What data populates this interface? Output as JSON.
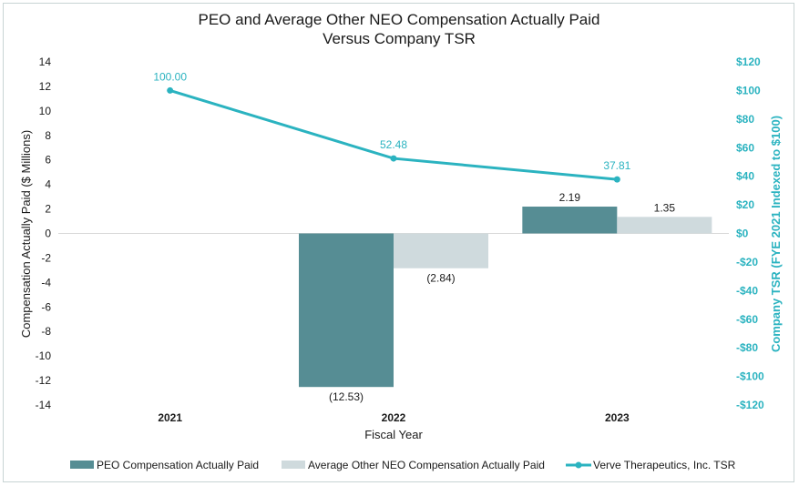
{
  "chart_data": {
    "type": "bar",
    "title_line1": "PEO and Average Other NEO Compensation Actually Paid",
    "title_line2": "Versus Company TSR",
    "categories": [
      "2021",
      "2022",
      "2023"
    ],
    "xlabel": "Fiscal Year",
    "ylabel": "Compensation Actually Paid ($ Millions)",
    "ylabel_right": "Company TSR (FYE 2021 Indexed to $100)",
    "ylim": [
      -14,
      14
    ],
    "y_ticks": [
      14,
      12,
      10,
      8,
      6,
      4,
      2,
      0,
      -2,
      -4,
      -6,
      -8,
      -10,
      -12,
      -14
    ],
    "ylim_right": [
      -120,
      120
    ],
    "y_ticks_right": [
      "$120",
      "$100",
      "$80",
      "$60",
      "$40",
      "$20",
      "$0",
      "-$20",
      "-$40",
      "-$60",
      "-$80",
      "-$100",
      "-$120"
    ],
    "y_ticks_right_values": [
      120,
      100,
      80,
      60,
      40,
      20,
      0,
      -20,
      -40,
      -60,
      -80,
      -100,
      -120
    ],
    "series": [
      {
        "name": "PEO Compensation Actually Paid",
        "kind": "bar",
        "color": "#568d94",
        "values": [
          null,
          -12.53,
          2.19
        ],
        "labels": [
          "",
          "(12.53)",
          "2.19"
        ]
      },
      {
        "name": "Average Other NEO Compensation Actually Paid",
        "kind": "bar",
        "color": "#cfdadd",
        "values": [
          null,
          -2.84,
          1.35
        ],
        "labels": [
          "",
          "(2.84)",
          "1.35"
        ]
      },
      {
        "name": "Verve Therapeutics, Inc. TSR",
        "kind": "line",
        "axis": "right",
        "color": "#2bb3c0",
        "values": [
          100.0,
          52.48,
          37.81
        ],
        "labels": [
          "100.00",
          "52.48",
          "37.81"
        ]
      }
    ],
    "legend_position": "bottom"
  }
}
